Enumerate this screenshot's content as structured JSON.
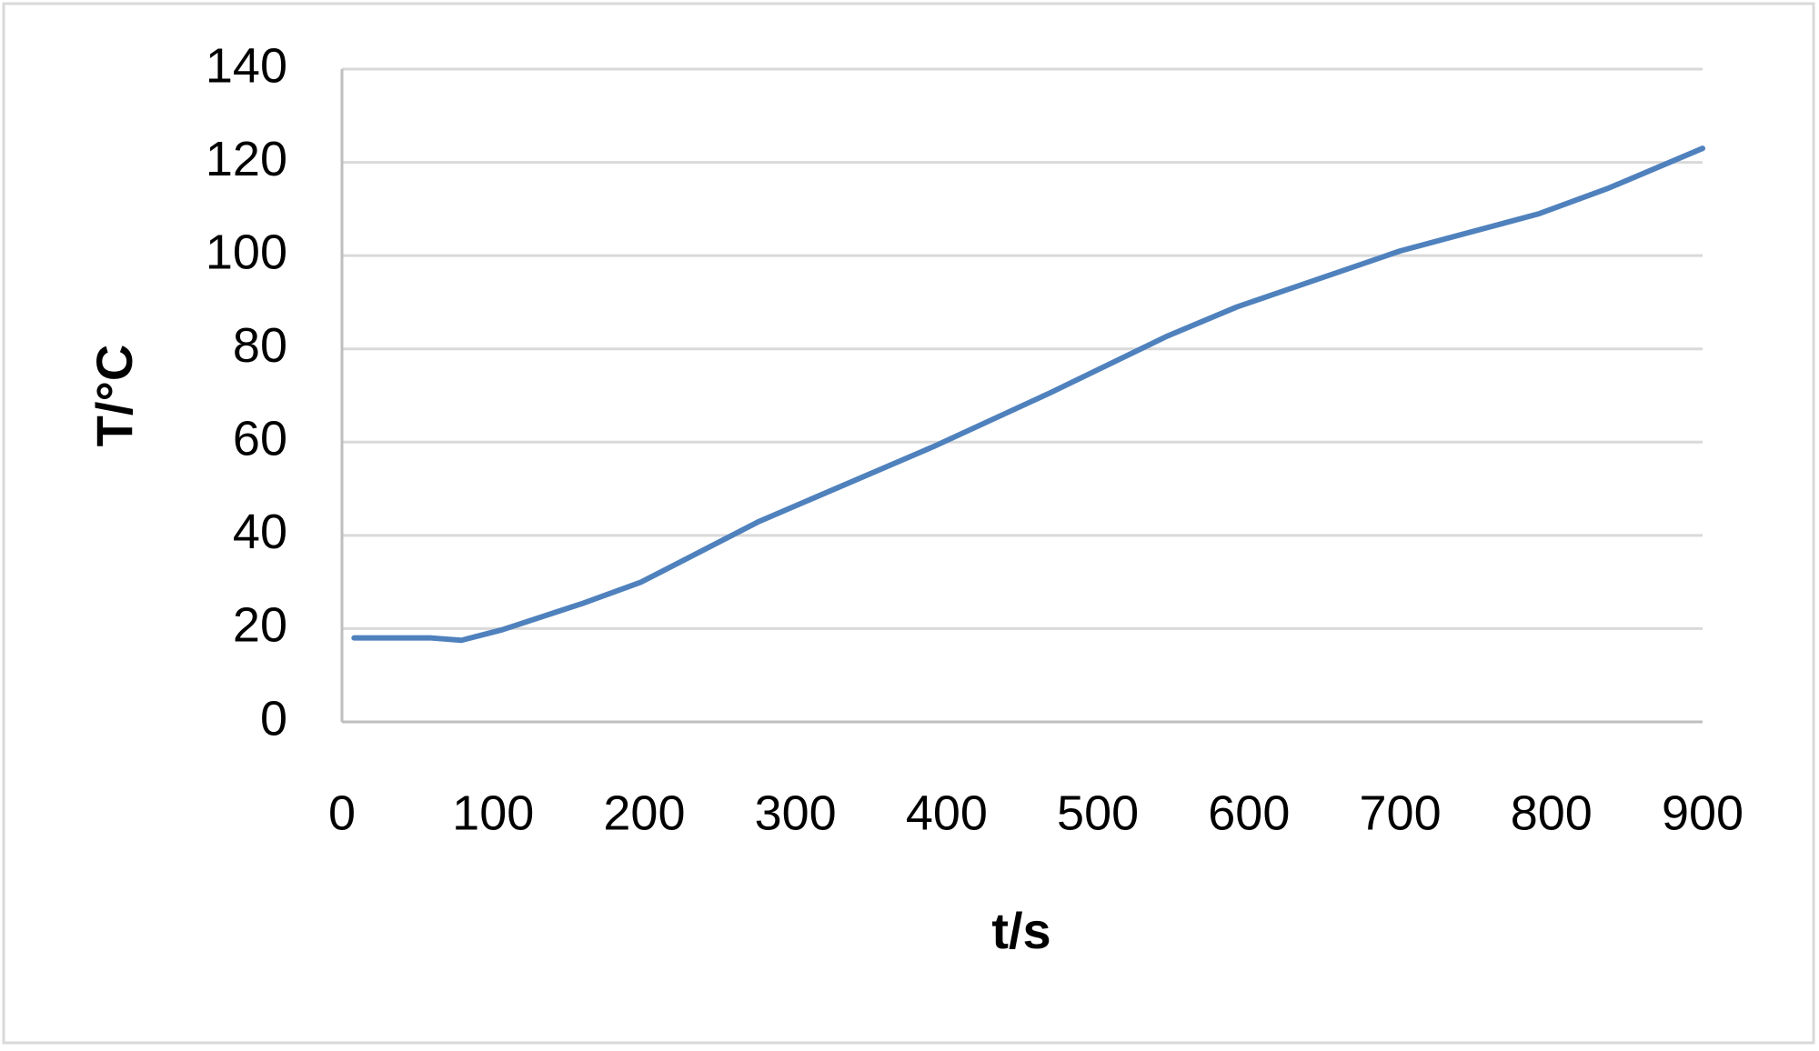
{
  "chart_data": {
    "type": "line",
    "x_label": "t/s",
    "y_label": "T/°C",
    "x": [
      8,
      59,
      79,
      106,
      160,
      198,
      276,
      391,
      468,
      546,
      592,
      700,
      792,
      838,
      900
    ],
    "series": [
      {
        "color": "#4f81bd",
        "values": [
          18,
          18,
          17.5,
          19.75,
          25.5,
          30,
          43,
          59,
          70.5,
          82.75,
          89,
          101,
          109,
          114.5,
          123
        ]
      }
    ],
    "xlim": [
      0,
      900
    ],
    "xticks": [
      0,
      100,
      200,
      300,
      400,
      500,
      600,
      700,
      800,
      900
    ],
    "ylim": [
      0,
      140
    ],
    "yticks": [
      0,
      20,
      40,
      60,
      80,
      100,
      120,
      140
    ],
    "grid": true
  }
}
